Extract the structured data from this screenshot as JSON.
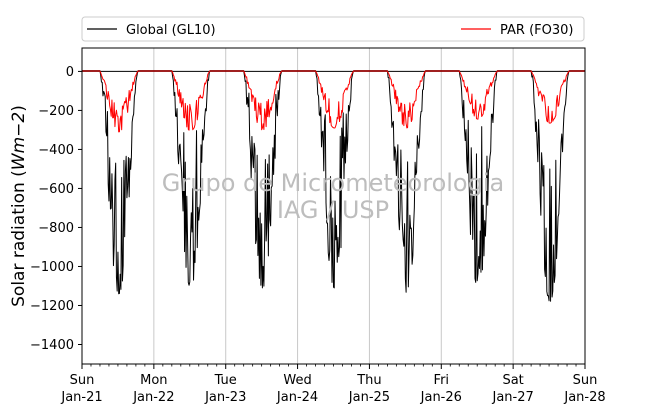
{
  "chart_data": {
    "type": "line",
    "ylabel": "Solar radiation (Wm−2)",
    "ylabel_parts": {
      "prefix": "Solar radiation (",
      "math": "Wm−2",
      "suffix": ")"
    },
    "ylim": [
      -1500,
      120
    ],
    "yticks": [
      0,
      -200,
      -400,
      -600,
      -800,
      -1000,
      -1200,
      -1400
    ],
    "ytick_labels": [
      "0",
      "−200",
      "−400",
      "−600",
      "−800",
      "−1000",
      "−1200",
      "−1400"
    ],
    "xlim": [
      "2024-01-21",
      "2024-01-28"
    ],
    "xticks": [
      {
        "day": "Sun",
        "date": "Jan-21"
      },
      {
        "day": "Mon",
        "date": "Jan-22"
      },
      {
        "day": "Tue",
        "date": "Jan-23"
      },
      {
        "day": "Wed",
        "date": "Jan-24"
      },
      {
        "day": "Thu",
        "date": "Jan-25"
      },
      {
        "day": "Fri",
        "date": "Jan-26"
      },
      {
        "day": "Sat",
        "date": "Jan-27"
      },
      {
        "day": "Sun",
        "date": "Jan-28"
      }
    ],
    "grid": "x-major",
    "legend_placement": "top, above plot",
    "watermark": [
      "Grupo de Micrometeorologia",
      "IAG / USP"
    ],
    "series": [
      {
        "name": "Global (GL10)",
        "color": "#000000",
        "daily_peaks": [
          -1140,
          -1110,
          -1110,
          -1110,
          -1160,
          -1110,
          -1180
        ]
      },
      {
        "name": "PAR (FO30)",
        "color": "#ff0000",
        "daily_peaks": [
          -310,
          -305,
          -300,
          -290,
          -290,
          -245,
          -265
        ]
      }
    ]
  }
}
